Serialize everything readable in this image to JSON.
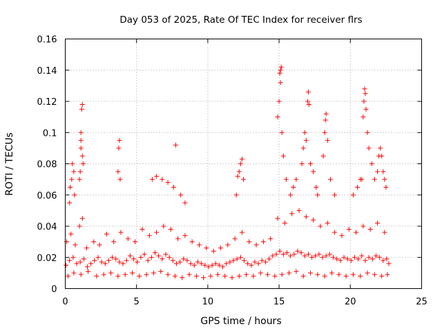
{
  "chart_data": {
    "type": "scatter",
    "title": "Day 053 of 2025, Rate Of TEC Index for receiver flrs",
    "xlabel": "GPS time / hours",
    "ylabel": "ROTI / TECUs",
    "xlim": [
      0,
      25
    ],
    "ylim": [
      0,
      0.16
    ],
    "xticks": [
      0,
      5,
      10,
      15,
      20,
      25
    ],
    "yticks": [
      0,
      0.02,
      0.04,
      0.06,
      0.08,
      0.1,
      0.12,
      0.14,
      0.16
    ],
    "xtick_labels": [
      "0",
      "5",
      "10",
      "15",
      "20",
      "25"
    ],
    "ytick_labels": [
      "0",
      "0.02",
      "0.04",
      "0.06",
      "0.08",
      "0.1",
      "0.12",
      "0.14",
      "0.16"
    ],
    "grid": true,
    "marker": "plus",
    "color": "#ff0000",
    "series": [
      {
        "x": [
          0.05,
          0.3,
          0.55,
          0.8,
          1.05,
          1.3,
          1.55,
          1.8,
          2.05,
          2.3,
          2.55,
          2.8,
          3.05,
          3.3,
          3.55,
          3.8,
          4.05,
          4.3,
          4.55,
          4.8,
          5.05,
          5.3,
          5.55,
          5.8,
          6.05,
          6.3,
          6.55,
          6.8,
          7.05,
          7.3,
          7.55,
          7.8,
          8.05,
          8.3,
          8.55,
          8.8,
          9.05,
          9.3,
          9.55,
          9.8,
          10.05,
          10.3,
          10.55,
          10.8,
          11.05,
          11.3,
          11.55,
          11.8,
          12.05,
          12.3,
          12.55,
          12.8,
          13.05,
          13.3,
          13.55,
          13.8,
          14.05,
          14.3,
          14.55,
          14.8,
          15.05,
          15.3,
          15.55,
          15.8,
          16.05,
          16.3,
          16.55,
          16.8,
          17.05,
          17.3,
          17.55,
          17.8,
          18.05,
          18.3,
          18.55,
          18.8,
          19.05,
          19.3,
          19.55,
          19.8,
          20.05,
          20.3,
          20.55,
          20.8,
          21.05,
          21.3,
          21.55,
          21.8,
          22.05,
          22.3,
          22.55,
          22.7,
          0.1,
          0.4,
          0.7,
          1.0,
          1.2,
          1.5,
          2.0,
          2.4,
          2.9,
          3.4,
          3.9,
          4.4,
          4.9,
          5.4,
          5.9,
          6.4,
          6.9,
          7.4,
          7.9,
          8.4,
          8.9,
          9.4,
          9.9,
          10.4,
          10.9,
          11.4,
          11.9,
          12.4,
          12.9,
          13.4,
          13.9,
          14.4,
          14.9,
          15.4,
          15.9,
          16.4,
          16.9,
          17.4,
          17.9,
          18.4,
          18.9,
          19.4,
          19.9,
          20.4,
          20.9,
          21.4,
          21.9,
          22.4,
          0.2,
          0.6,
          1.1,
          1.6,
          2.2,
          2.7,
          3.2,
          3.7,
          4.2,
          4.7,
          5.2,
          5.7,
          6.2,
          6.7,
          7.2,
          7.7,
          8.2,
          8.7,
          9.2,
          9.7,
          10.2,
          10.7,
          11.2,
          11.7,
          12.2,
          12.7,
          13.2,
          13.7,
          14.2,
          14.7,
          15.2,
          15.7,
          16.2,
          16.7,
          17.2,
          17.7,
          18.2,
          18.7,
          19.2,
          19.7,
          20.2,
          20.7,
          21.2,
          21.7,
          22.2,
          22.6,
          0.3,
          0.35,
          0.45,
          0.5,
          0.6,
          0.65,
          1.0,
          1.05,
          1.1,
          1.1,
          1.1,
          1.15,
          1.2,
          1.2,
          1.25,
          3.7,
          3.75,
          3.8,
          3.85,
          6.1,
          6.4,
          6.8,
          7.2,
          7.6,
          7.75,
          8.1,
          8.4,
          12.0,
          12.1,
          12.2,
          12.3,
          12.4,
          12.5,
          14.9,
          15.0,
          15.05,
          15.1,
          15.1,
          15.15,
          15.2,
          15.3,
          15.5,
          15.8,
          16.0,
          16.2,
          16.6,
          16.7,
          16.8,
          16.9,
          17.0,
          17.05,
          17.1,
          17.2,
          17.4,
          17.6,
          17.7,
          18.1,
          18.2,
          18.25,
          18.3,
          18.4,
          18.6,
          18.9,
          20.2,
          20.5,
          20.7,
          20.8,
          20.9,
          20.95,
          21.0,
          21.05,
          21.1,
          21.2,
          21.3,
          21.5,
          21.7,
          21.9,
          22.0,
          22.1,
          22.2,
          22.3,
          22.4,
          22.5
        ],
        "y": [
          0.015,
          0.018,
          0.02,
          0.016,
          0.017,
          0.019,
          0.014,
          0.016,
          0.018,
          0.02,
          0.017,
          0.016,
          0.018,
          0.02,
          0.019,
          0.017,
          0.016,
          0.018,
          0.021,
          0.019,
          0.017,
          0.02,
          0.022,
          0.018,
          0.02,
          0.023,
          0.021,
          0.019,
          0.022,
          0.02,
          0.018,
          0.016,
          0.017,
          0.019,
          0.018,
          0.016,
          0.015,
          0.017,
          0.016,
          0.015,
          0.014,
          0.015,
          0.016,
          0.015,
          0.014,
          0.016,
          0.017,
          0.018,
          0.019,
          0.02,
          0.018,
          0.016,
          0.015,
          0.017,
          0.016,
          0.018,
          0.017,
          0.019,
          0.021,
          0.022,
          0.024,
          0.022,
          0.023,
          0.021,
          0.022,
          0.024,
          0.023,
          0.021,
          0.022,
          0.02,
          0.021,
          0.022,
          0.02,
          0.021,
          0.022,
          0.02,
          0.019,
          0.018,
          0.02,
          0.019,
          0.018,
          0.02,
          0.019,
          0.021,
          0.018,
          0.02,
          0.019,
          0.021,
          0.02,
          0.018,
          0.019,
          0.016,
          0.03,
          0.035,
          0.028,
          0.04,
          0.045,
          0.026,
          0.03,
          0.028,
          0.035,
          0.03,
          0.036,
          0.032,
          0.03,
          0.038,
          0.034,
          0.036,
          0.04,
          0.038,
          0.032,
          0.034,
          0.03,
          0.028,
          0.026,
          0.024,
          0.026,
          0.028,
          0.032,
          0.036,
          0.03,
          0.028,
          0.03,
          0.032,
          0.045,
          0.042,
          0.048,
          0.05,
          0.046,
          0.044,
          0.04,
          0.042,
          0.036,
          0.034,
          0.038,
          0.036,
          0.04,
          0.038,
          0.042,
          0.036,
          0.008,
          0.01,
          0.009,
          0.011,
          0.008,
          0.009,
          0.01,
          0.008,
          0.009,
          0.01,
          0.008,
          0.009,
          0.01,
          0.011,
          0.009,
          0.008,
          0.007,
          0.009,
          0.008,
          0.007,
          0.008,
          0.009,
          0.008,
          0.007,
          0.008,
          0.009,
          0.008,
          0.01,
          0.009,
          0.008,
          0.009,
          0.01,
          0.011,
          0.008,
          0.01,
          0.009,
          0.008,
          0.01,
          0.009,
          0.008,
          0.009,
          0.008,
          0.01,
          0.009,
          0.008,
          0.009,
          0.055,
          0.065,
          0.07,
          0.08,
          0.075,
          0.06,
          0.07,
          0.075,
          0.09,
          0.095,
          0.1,
          0.115,
          0.118,
          0.085,
          0.08,
          0.075,
          0.09,
          0.095,
          0.07,
          0.07,
          0.072,
          0.07,
          0.068,
          0.065,
          0.092,
          0.06,
          0.055,
          0.06,
          0.072,
          0.075,
          0.08,
          0.083,
          0.07,
          0.11,
          0.12,
          0.138,
          0.132,
          0.14,
          0.142,
          0.1,
          0.085,
          0.07,
          0.06,
          0.065,
          0.07,
          0.08,
          0.09,
          0.1,
          0.095,
          0.12,
          0.126,
          0.118,
          0.08,
          0.075,
          0.065,
          0.06,
          0.085,
          0.1,
          0.108,
          0.112,
          0.095,
          0.07,
          0.06,
          0.06,
          0.065,
          0.07,
          0.07,
          0.11,
          0.12,
          0.128,
          0.125,
          0.115,
          0.1,
          0.09,
          0.08,
          0.07,
          0.075,
          0.085,
          0.09,
          0.085,
          0.075,
          0.07,
          0.065
        ]
      }
    ]
  }
}
